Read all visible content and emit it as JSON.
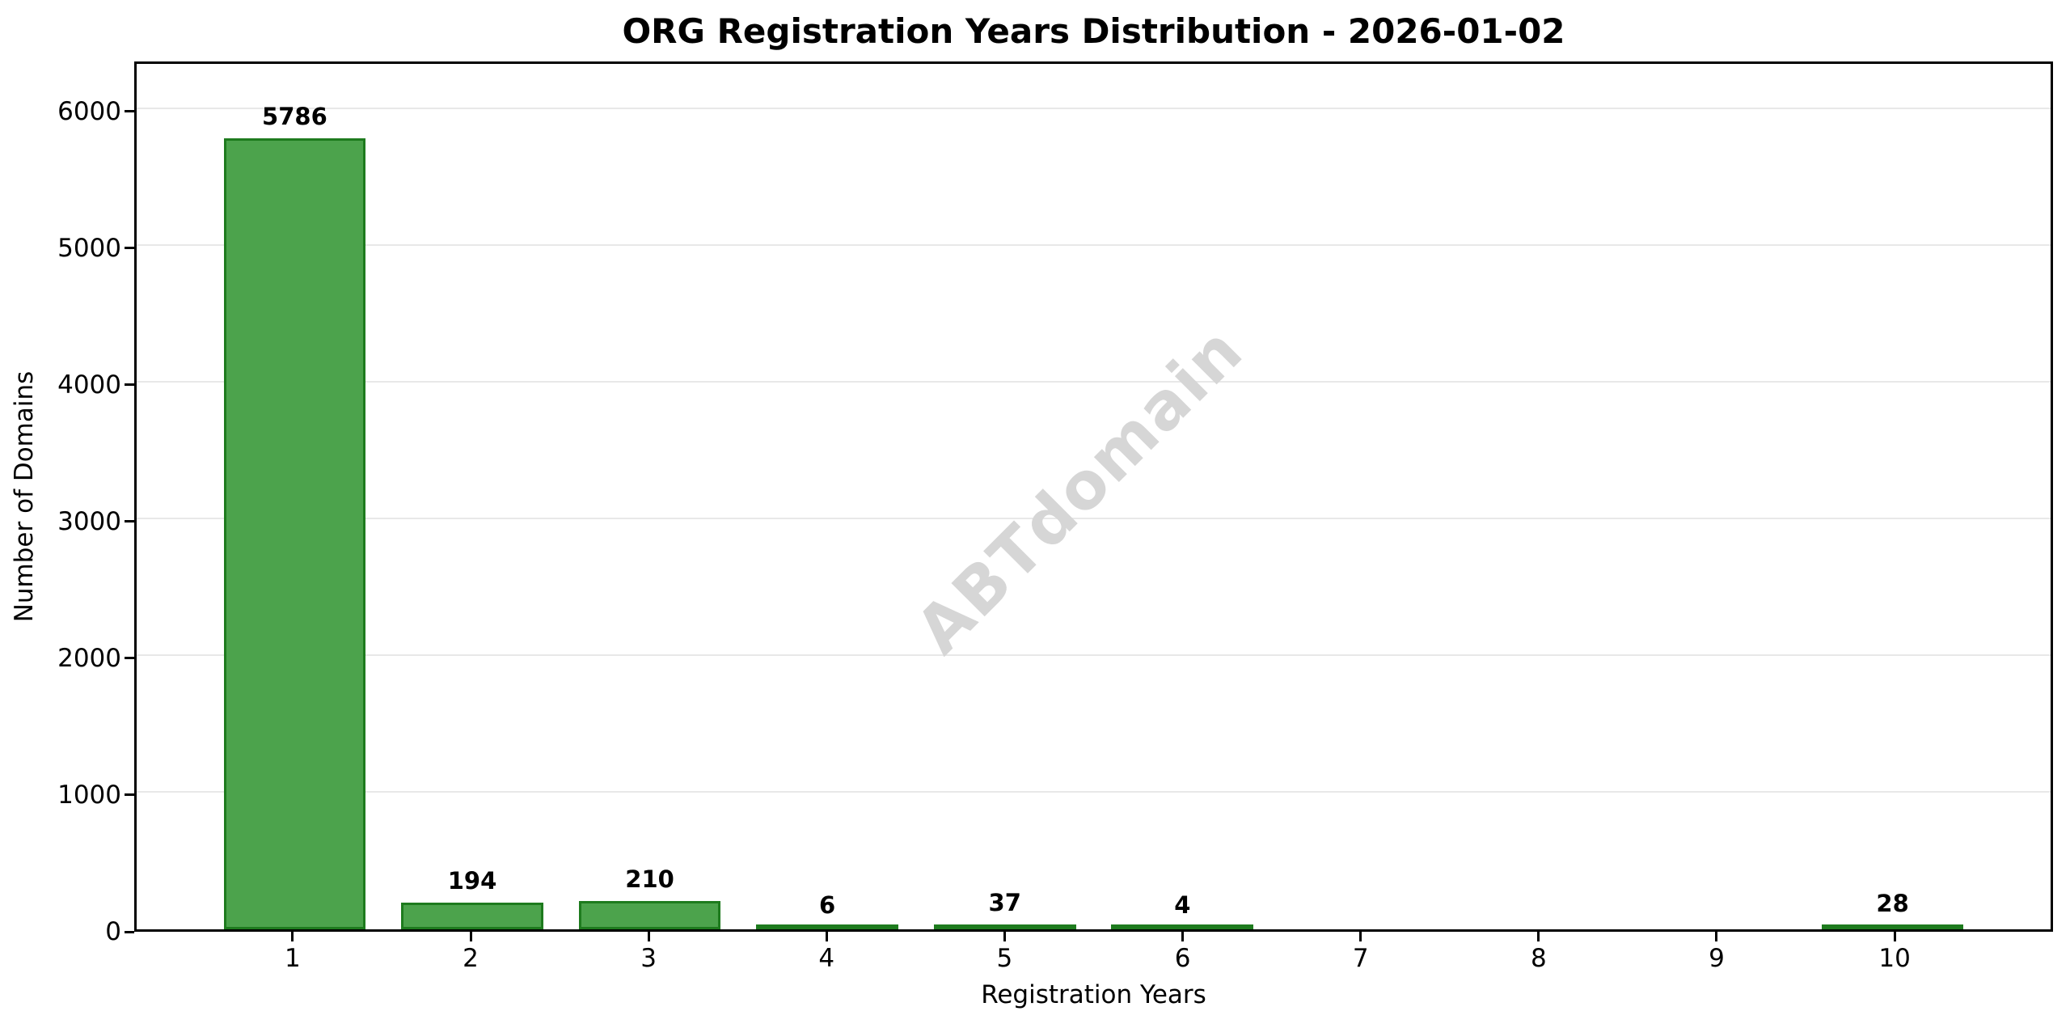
{
  "figure": {
    "title": "ORG Registration Years Distribution - 2026-01-02",
    "watermark": "ABTdomain"
  },
  "chart_data": {
    "type": "bar",
    "title": "ORG Registration Years Distribution - 2026-01-02",
    "xlabel": "Registration Years",
    "ylabel": "Number of Domains",
    "categories": [
      "1",
      "2",
      "3",
      "4",
      "5",
      "6",
      "7",
      "8",
      "9",
      "10"
    ],
    "values": [
      5786,
      194,
      210,
      6,
      37,
      4,
      0,
      0,
      0,
      28
    ],
    "bar_value_labels": [
      "5786",
      "194",
      "210",
      "6",
      "37",
      "4",
      "",
      "",
      "",
      "28"
    ],
    "yticks": [
      0,
      1000,
      2000,
      3000,
      4000,
      5000,
      6000
    ],
    "ytick_labels": [
      "0",
      "1000",
      "2000",
      "3000",
      "4000",
      "5000",
      "6000"
    ],
    "ylim": [
      0,
      6364.6
    ],
    "xlim": [
      0.11,
      10.89
    ],
    "bar_width": 0.8,
    "grid": "horizontal-light",
    "legend": null,
    "watermark": "ABTdomain",
    "colors": {
      "bar_fill": "#4CA34C",
      "bar_edge": "#1E7B1E",
      "gridline": "#E8E8E8",
      "axis": "#000000",
      "text": "#000000",
      "watermark": "#D6D6D6",
      "background": "#FFFFFF"
    }
  }
}
